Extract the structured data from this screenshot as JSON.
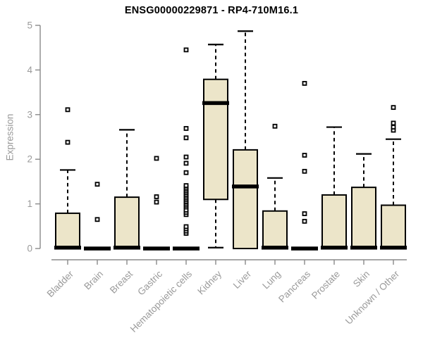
{
  "chart_data": {
    "type": "boxplot",
    "title": "ENSG00000229871 - RP4-710M16.1",
    "ylabel": "Expression",
    "xlabel": "",
    "ylim": [
      0,
      5
    ],
    "yticks": [
      0,
      1,
      2,
      3,
      4,
      5
    ],
    "grid": false,
    "legend": false,
    "colors": {
      "box_fill": "#ece5c9",
      "box_border": "#000000",
      "median": "#000000",
      "whisker": "#000000",
      "outlier": "#000000",
      "axis": "#8a8a8a",
      "tick_label": "#9a9a9a",
      "title": "#000000",
      "background": "#ffffff"
    },
    "categories": [
      {
        "label": "Bladder",
        "q1": 0,
        "median": 0.02,
        "q3": 0.79,
        "whisker_low": 0,
        "whisker_high": 1.76,
        "outliers": [
          2.38,
          3.11
        ]
      },
      {
        "label": "Brain",
        "q1": 0,
        "median": 0,
        "q3": 0,
        "whisker_low": 0,
        "whisker_high": 0,
        "outliers": [
          0.65,
          1.44
        ]
      },
      {
        "label": "Breast",
        "q1": 0,
        "median": 0.02,
        "q3": 1.15,
        "whisker_low": 0,
        "whisker_high": 2.66,
        "outliers": []
      },
      {
        "label": "Gastric",
        "q1": 0,
        "median": 0,
        "q3": 0,
        "whisker_low": 0,
        "whisker_high": 0,
        "outliers": [
          1.04,
          1.16,
          2.02
        ]
      },
      {
        "label": "Hematopoietic cells",
        "q1": 0,
        "median": 0,
        "q3": 0,
        "whisker_low": 0,
        "whisker_high": 0,
        "outliers": [
          0.34,
          0.39,
          0.44,
          0.49,
          0.76,
          0.81,
          0.86,
          0.93,
          0.97,
          1.01,
          1.05,
          1.09,
          1.13,
          1.17,
          1.21,
          1.25,
          1.29,
          1.33,
          1.37,
          1.41,
          1.7,
          1.91,
          2.05,
          2.48,
          2.69,
          4.45
        ]
      },
      {
        "label": "Kidney",
        "q1": 1.1,
        "median": 3.26,
        "q3": 3.79,
        "whisker_low": 0.02,
        "whisker_high": 4.57,
        "outliers": []
      },
      {
        "label": "Liver",
        "q1": 0,
        "median": 1.39,
        "q3": 2.21,
        "whisker_low": 0,
        "whisker_high": 4.87,
        "outliers": []
      },
      {
        "label": "Lung",
        "q1": 0,
        "median": 0.02,
        "q3": 0.84,
        "whisker_low": 0,
        "whisker_high": 1.58,
        "outliers": [
          2.74
        ]
      },
      {
        "label": "Pancreas",
        "q1": 0,
        "median": 0,
        "q3": 0,
        "whisker_low": 0,
        "whisker_high": 0,
        "outliers": [
          0.61,
          0.78,
          1.73,
          2.09,
          3.7
        ]
      },
      {
        "label": "Prostate",
        "q1": 0,
        "median": 0.02,
        "q3": 1.2,
        "whisker_low": 0,
        "whisker_high": 2.72,
        "outliers": []
      },
      {
        "label": "Skin",
        "q1": 0,
        "median": 0.02,
        "q3": 1.37,
        "whisker_low": 0,
        "whisker_high": 2.12,
        "outliers": []
      },
      {
        "label": "Unknown / Other",
        "q1": 0,
        "median": 0.02,
        "q3": 0.97,
        "whisker_low": 0,
        "whisker_high": 2.45,
        "outliers": [
          2.65,
          2.72,
          2.81,
          3.16
        ]
      }
    ]
  }
}
